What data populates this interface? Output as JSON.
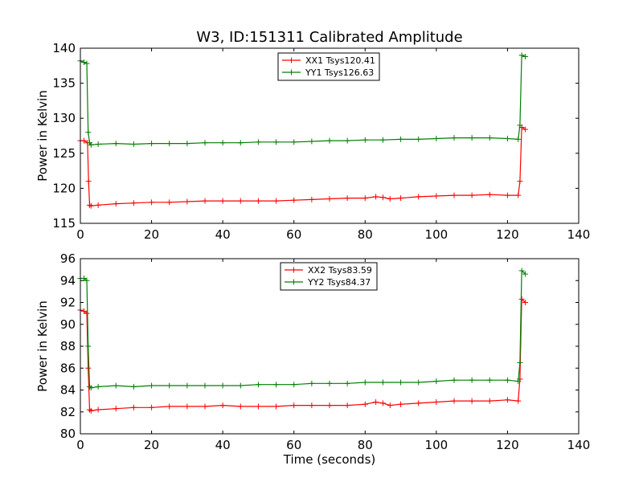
{
  "figure": {
    "title": "W3, ID:151311 Calibrated Amplitude"
  },
  "chart_data": [
    {
      "type": "line",
      "title": "W3, ID:151311 Calibrated Amplitude",
      "xlabel": "",
      "ylabel": "Power in Kelvin",
      "xlim": [
        0,
        140
      ],
      "ylim": [
        115,
        140
      ],
      "xticks": [
        "0",
        "20",
        "40",
        "60",
        "80",
        "100",
        "120",
        "140"
      ],
      "yticks": [
        "115",
        "120",
        "125",
        "130",
        "135",
        "140"
      ],
      "legend_position": "top-center",
      "grid": false,
      "series": [
        {
          "name": "XX1 Tsys120.41",
          "color": "#ff0000",
          "x": [
            0,
            1,
            2,
            2.3,
            2.6,
            3,
            5,
            10,
            15,
            20,
            25,
            30,
            35,
            40,
            45,
            50,
            55,
            60,
            65,
            70,
            75,
            80,
            83,
            85,
            87,
            90,
            95,
            100,
            105,
            110,
            115,
            120,
            123,
            123.5,
            124,
            125
          ],
          "y": [
            126.8,
            126.8,
            126.5,
            121,
            117.6,
            117.5,
            117.6,
            117.8,
            117.9,
            118.0,
            118.0,
            118.1,
            118.2,
            118.2,
            118.2,
            118.2,
            118.2,
            118.3,
            118.4,
            118.5,
            118.6,
            118.6,
            118.8,
            118.7,
            118.5,
            118.6,
            118.8,
            118.9,
            119.0,
            119.0,
            119.1,
            119.0,
            119.0,
            121,
            128.7,
            128.4
          ]
        },
        {
          "name": "YY1 Tsys126.63",
          "color": "#008000",
          "x": [
            0,
            1,
            1.8,
            2.2,
            2.6,
            3,
            5,
            10,
            15,
            20,
            25,
            30,
            35,
            40,
            45,
            50,
            55,
            60,
            65,
            70,
            75,
            80,
            85,
            90,
            95,
            100,
            105,
            110,
            115,
            120,
            123,
            123.5,
            124,
            125
          ],
          "y": [
            138.2,
            138.0,
            137.8,
            128.0,
            126.5,
            126.2,
            126.3,
            126.4,
            126.3,
            126.4,
            126.4,
            126.4,
            126.5,
            126.5,
            126.5,
            126.6,
            126.6,
            126.6,
            126.7,
            126.8,
            126.8,
            126.9,
            126.9,
            127.0,
            127.0,
            127.1,
            127.2,
            127.2,
            127.2,
            127.1,
            127.0,
            129,
            139.0,
            138.8
          ]
        }
      ]
    },
    {
      "type": "line",
      "title": "",
      "xlabel": "Time (seconds)",
      "ylabel": "Power in Kelvin",
      "xlim": [
        0,
        140
      ],
      "ylim": [
        80,
        96
      ],
      "xticks": [
        "0",
        "20",
        "40",
        "60",
        "80",
        "100",
        "120",
        "140"
      ],
      "yticks": [
        "80",
        "82",
        "84",
        "86",
        "88",
        "90",
        "92",
        "94",
        "96"
      ],
      "legend_position": "top-center",
      "grid": false,
      "series": [
        {
          "name": "XX2 Tsys83.59",
          "color": "#ff0000",
          "x": [
            0,
            1,
            1.8,
            2.2,
            2.6,
            3,
            5,
            10,
            15,
            20,
            25,
            30,
            35,
            40,
            45,
            50,
            55,
            60,
            65,
            70,
            75,
            80,
            83,
            85,
            87,
            90,
            95,
            100,
            105,
            110,
            115,
            120,
            123,
            123.5,
            124,
            125
          ],
          "y": [
            91.3,
            91.2,
            91.0,
            86.0,
            82.2,
            82.1,
            82.2,
            82.3,
            82.4,
            82.4,
            82.5,
            82.5,
            82.5,
            82.6,
            82.5,
            82.5,
            82.5,
            82.6,
            82.6,
            82.6,
            82.6,
            82.7,
            82.9,
            82.8,
            82.6,
            82.7,
            82.8,
            82.9,
            83.0,
            83.0,
            83.0,
            83.1,
            83.0,
            85.0,
            92.3,
            92.0
          ]
        },
        {
          "name": "YY2 Tsys84.37",
          "color": "#008000",
          "x": [
            0,
            1,
            1.8,
            2.2,
            2.6,
            3,
            5,
            10,
            15,
            20,
            25,
            30,
            35,
            40,
            45,
            50,
            55,
            60,
            65,
            70,
            75,
            80,
            85,
            90,
            95,
            100,
            105,
            110,
            115,
            120,
            123,
            123.5,
            124,
            125
          ],
          "y": [
            94.2,
            94.2,
            94.0,
            88.0,
            84.3,
            84.2,
            84.3,
            84.4,
            84.3,
            84.4,
            84.4,
            84.4,
            84.4,
            84.4,
            84.4,
            84.5,
            84.5,
            84.5,
            84.6,
            84.6,
            84.6,
            84.7,
            84.7,
            84.7,
            84.7,
            84.8,
            84.9,
            84.9,
            84.9,
            84.9,
            84.8,
            86.5,
            94.9,
            94.6
          ]
        }
      ]
    }
  ]
}
